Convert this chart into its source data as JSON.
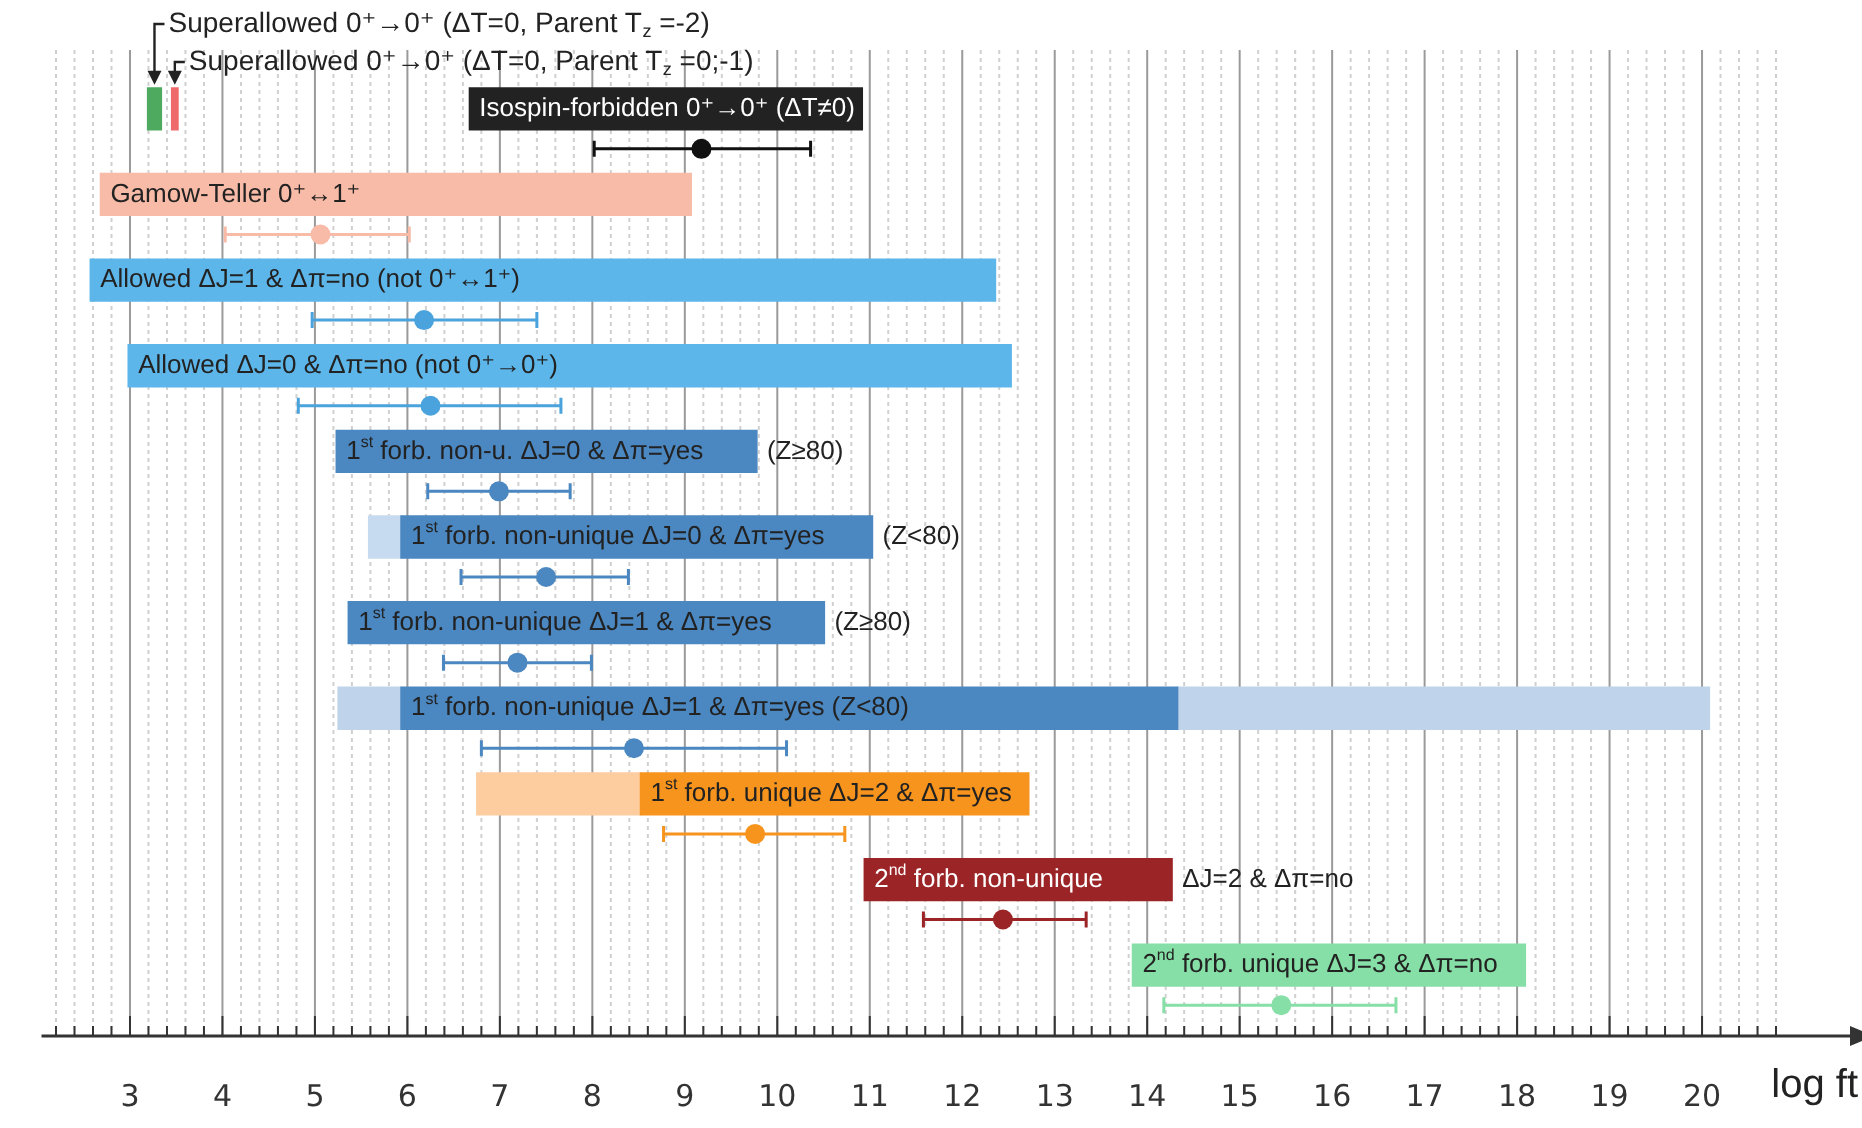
{
  "chart_data": {
    "type": "bar",
    "orientation": "horizontal",
    "xlabel": "log ft",
    "grid": true,
    "legend": false,
    "tick_labels": "x",
    "marker": "circle",
    "categories": [
      "Isospin-forbidden 0⁺→0⁺ (ΔT≠0)",
      "Gamow-Teller 0⁺↔1⁺",
      "Allowed ΔJ=1 & Δπ=no (not 0⁺↔1⁺)",
      "Allowed ΔJ=0 & Δπ=no (not 0⁺→0⁺)",
      "1$^{st}$ forb. non-u. ΔJ=0 & Δπ=yes (Z≥80)",
      "1$^{st}$ forb. non-unique ΔJ=0 & Δπ=yes (Z<80)",
      "1$^{st}$ forb. non-unique ΔJ=1 & Δπ=yes (Z≥80)",
      "1$^{st}$ forb. non-unique ΔJ=1 & Δπ=yes (Z<80)",
      "1$^{st}$ forb. unique ΔJ=2 & Δπ=yes",
      "2$^{nd}$ forb. non-unique ΔJ=2 & Δπ=no",
      "2$^{nd}$ forb. unique ΔJ=3 & Δπ=no"
    ],
    "series": [
      {
        "base": [
          6.67,
          2.68,
          2.57,
          2.98,
          5.23,
          5.93,
          5.36,
          5.93,
          8.52,
          10.94,
          13.84
        ],
        "values": [
          4.25,
          6.39,
          9.79,
          9.55,
          4.55,
          5.1,
          5.15,
          8.4,
          4.2,
          3.33,
          4.25
        ],
        "colors": [
          "#222222",
          "#f8bba8",
          "#5db6e9",
          "#5db6e9",
          "#4b87c0",
          "#4b87c0",
          "#4b87c0",
          "#4b87c0",
          "#f7941d",
          "#9b2526",
          "#86dfa6"
        ]
      },
      {
        "base": [
          null,
          null,
          null,
          null,
          null,
          5.58,
          null,
          5.25,
          6.75,
          null,
          null
        ],
        "values": [
          null,
          null,
          null,
          null,
          null,
          0.35,
          null,
          0.68,
          1.77,
          null,
          null
        ],
        "colors": [
          "#c6dbef",
          "#c6dbef",
          "#c6dbef",
          "#c6dbef",
          "#c6dbef",
          "#c6dbef",
          "#c6dbef",
          "#bfd4ea",
          "#fdcc9f",
          "#c6dbef",
          "#c6dbef"
        ]
      },
      {
        "base": [
          null,
          null,
          null,
          null,
          null,
          null,
          null,
          14.33,
          null,
          null,
          null
        ],
        "values": [
          null,
          null,
          null,
          null,
          null,
          null,
          null,
          5.75,
          null,
          null,
          null
        ],
        "colors": [
          "#bfd4ea",
          "#bfd4ea",
          "#bfd4ea",
          "#bfd4ea",
          "#bfd4ea",
          "#bfd4ea",
          "#bfd4ea",
          "#bfd4ea",
          "#bfd4ea",
          "#bfd4ea",
          "#bfd4ea"
        ]
      },
      {
        "name": "Superallowed 0⁺→0⁺ (ΔT=0, Parent T$_{z}$ =-2)",
        "color": "#4daa5f",
        "base": [
          3.19,
          null,
          null,
          null,
          null,
          null,
          null,
          null,
          null,
          null,
          null
        ],
        "values": [
          0.15,
          null,
          null,
          null,
          null,
          null,
          null,
          null,
          null,
          null,
          null
        ]
      },
      {
        "name": "Superallowed 0⁺→0⁺ (ΔT=0, Parent T$_{z}$ =0;-1)",
        "color": "#ef6b6b",
        "base": [
          3.45,
          null,
          null,
          null,
          null,
          null,
          null,
          null,
          null,
          null,
          null
        ],
        "values": [
          0.07,
          null,
          null,
          null,
          null,
          null,
          null,
          null,
          null,
          null,
          null
        ]
      },
      {
        "type": "scatter",
        "values": [
          9.18,
          5.06,
          6.18,
          6.25,
          6.99,
          7.5,
          7.19,
          8.45,
          9.76,
          12.44,
          15.45
        ],
        "errors": [
          [
            8.02,
            10.36
          ],
          [
            4.03,
            6.02
          ],
          [
            4.97,
            7.4
          ],
          [
            4.82,
            7.66
          ],
          [
            6.22,
            7.76
          ],
          [
            6.58,
            8.39
          ],
          [
            6.39,
            7.99
          ],
          [
            6.8,
            10.1
          ],
          [
            8.77,
            10.73
          ],
          [
            11.58,
            13.34
          ],
          [
            14.18,
            16.69
          ]
        ],
        "colors": [
          "#111111",
          "#f8bba8",
          "#4aa3dc",
          "#4aa3dc",
          "#4b87c0",
          "#4b87c0",
          "#4b87c0",
          "#4b87c0",
          "#f7941d",
          "#9b2526",
          "#86dfa6"
        ]
      }
    ],
    "xlim": [
      2,
      21.6
    ],
    "xticks": [
      {
        "value": 2.2,
        "label": null
      },
      {
        "value": 2.4,
        "label": null
      },
      {
        "value": 2.6,
        "label": null
      },
      {
        "value": 2.8,
        "label": null
      },
      3,
      {
        "value": 3.2,
        "label": null
      },
      {
        "value": 3.4,
        "label": null
      },
      {
        "value": 3.6,
        "label": null
      },
      {
        "value": 3.8,
        "label": null
      },
      4,
      {
        "value": 4.2,
        "label": null
      },
      {
        "value": 4.4,
        "label": null
      },
      {
        "value": 4.6,
        "label": null
      },
      {
        "value": 4.8,
        "label": null
      },
      5,
      {
        "value": 5.2,
        "label": null
      },
      {
        "value": 5.4,
        "label": null
      },
      {
        "value": 5.6,
        "label": null
      },
      {
        "value": 5.8,
        "label": null
      },
      6,
      {
        "value": 6.2,
        "label": null
      },
      {
        "value": 6.4,
        "label": null
      },
      {
        "value": 6.6,
        "label": null
      },
      {
        "value": 6.8,
        "label": null
      },
      7,
      {
        "value": 7.2,
        "label": null
      },
      {
        "value": 7.4,
        "label": null
      },
      {
        "value": 7.6,
        "label": null
      },
      {
        "value": 7.8,
        "label": null
      },
      8,
      {
        "value": 8.2,
        "label": null
      },
      {
        "value": 8.4,
        "label": null
      },
      {
        "value": 8.6,
        "label": null
      },
      {
        "value": 8.8,
        "label": null
      },
      9,
      {
        "value": 9.2,
        "label": null
      },
      {
        "value": 9.4,
        "label": null
      },
      {
        "value": 9.6,
        "label": null
      },
      {
        "value": 9.8,
        "label": null
      },
      10,
      {
        "value": 10.2,
        "label": null
      },
      {
        "value": 10.4,
        "label": null
      },
      {
        "value": 10.6,
        "label": null
      },
      {
        "value": 10.8,
        "label": null
      },
      11,
      {
        "value": 11.2,
        "label": null
      },
      {
        "value": 11.4,
        "label": null
      },
      {
        "value": 11.6,
        "label": null
      },
      {
        "value": 11.8,
        "label": null
      },
      12,
      {
        "value": 12.2,
        "label": null
      },
      {
        "value": 12.4,
        "label": null
      },
      {
        "value": 12.6,
        "label": null
      },
      {
        "value": 12.8,
        "label": null
      },
      13,
      {
        "value": 13.2,
        "label": null
      },
      {
        "value": 13.4,
        "label": null
      },
      {
        "value": 13.6,
        "label": null
      },
      {
        "value": 13.8,
        "label": null
      },
      14,
      {
        "value": 14.2,
        "label": null
      },
      {
        "value": 14.4,
        "label": null
      },
      {
        "value": 14.6,
        "label": null
      },
      {
        "value": 14.8,
        "label": null
      },
      15,
      {
        "value": 15.2,
        "label": null
      },
      {
        "value": 15.4,
        "label": null
      },
      {
        "value": 15.6,
        "label": null
      },
      {
        "value": 15.8,
        "label": null
      },
      16,
      {
        "value": 16.2,
        "label": null
      },
      {
        "value": 16.4,
        "label": null
      },
      {
        "value": 16.6,
        "label": null
      },
      {
        "value": 16.8,
        "label": null
      },
      17,
      {
        "value": 17.2,
        "label": null
      },
      {
        "value": 17.4,
        "label": null
      },
      {
        "value": 17.6,
        "label": null
      },
      {
        "value": 17.8,
        "label": null
      },
      18,
      {
        "value": 18.2,
        "label": null
      },
      {
        "value": 18.4,
        "label": null
      },
      {
        "value": 18.6,
        "label": null
      },
      {
        "value": 18.8,
        "label": null
      },
      19,
      {
        "value": 19.2,
        "label": null
      },
      {
        "value": 19.4,
        "label": null
      },
      {
        "value": 19.6,
        "label": null
      },
      {
        "value": 19.8,
        "label": null
      },
      20,
      {
        "value": 20.2,
        "label": null
      },
      {
        "value": 20.4,
        "label": null
      },
      {
        "value": 20.6,
        "label": null
      },
      {
        "value": 20.8,
        "label": null
      }
    ]
  }
}
